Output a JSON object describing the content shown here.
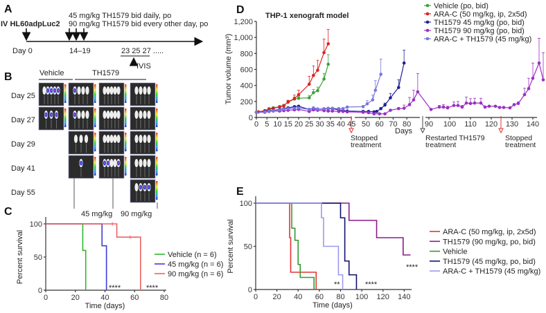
{
  "panel_labels": {
    "a": "A",
    "b": "B",
    "c": "C",
    "d": "D",
    "e": "E"
  },
  "panel_a": {
    "cells": "IV HL60adpLuc2",
    "dose1": "45 mg/kg TH1579  bid daily, po",
    "dose2": "90 mg/kg TH1579  bid every  other day, po",
    "day0": "Day 0",
    "dose_days": "14–19",
    "imaging_days": "23  25  27 .....",
    "imaging_label": "IVIS"
  },
  "panel_b": {
    "group_vehicle": "Vehicle",
    "group_th1579": "TH1579",
    "days": [
      "Day 25",
      "Day 27",
      "Day 29",
      "Day 41",
      "Day 55"
    ],
    "dose_45": "45 mg/kg",
    "dose_90": "90 mg/kg"
  },
  "chart_data": [
    {
      "id": "C",
      "type": "line",
      "subtype": "kaplan-meier",
      "xlabel": "Time (days)",
      "ylabel": "Percent survival",
      "xlim": [
        0,
        80
      ],
      "ylim": [
        0,
        100
      ],
      "xticks": [
        "0",
        "20",
        "40",
        "60",
        "80"
      ],
      "yticks": [
        "0",
        "50",
        "100"
      ],
      "legend_position": "right",
      "series": [
        {
          "name": "Vehicle (n = 6)",
          "color": "#2fb52f",
          "steps": [
            [
              0,
              100
            ],
            [
              25,
              60
            ],
            [
              27,
              0
            ]
          ],
          "censored": []
        },
        {
          "name": "45 mg/kg (n = 6)",
          "color": "#3b3bd9",
          "steps": [
            [
              0,
              100
            ],
            [
              38,
              67
            ],
            [
              41,
              0
            ]
          ],
          "censored": []
        },
        {
          "name": "90 mg/kg (n = 6)",
          "color": "#f06060",
          "steps": [
            [
              0,
              100
            ],
            [
              48,
              80
            ],
            [
              64,
              0
            ]
          ],
          "censored": [
            [
              45,
              100
            ],
            [
              57,
              80
            ]
          ]
        }
      ],
      "annotations": [
        "****",
        "****"
      ]
    },
    {
      "id": "D",
      "type": "line",
      "title": "THP-1 xenograft model",
      "xlabel": "Days",
      "ylabel": "Tumor volume (mm³)",
      "ylim": [
        0,
        1200
      ],
      "yticks": [
        "0",
        "200",
        "400",
        "600",
        "800",
        "1,000",
        "1,200"
      ],
      "xticks": [
        "0",
        "5",
        "10",
        "15",
        "20",
        "25",
        "30",
        "35",
        "40",
        "45",
        "50",
        "60",
        "70",
        "80",
        "90",
        "100",
        "110",
        "120",
        "130",
        "140"
      ],
      "axis_breaks": true,
      "legend_position": "top-right",
      "series": [
        {
          "name": "Vehicle (po, bid)",
          "color": "#3aa33a",
          "points": [
            [
              0,
              65,
              5
            ],
            [
              1,
              70,
              5
            ],
            [
              4,
              85,
              8
            ],
            [
              6,
              110,
              10
            ],
            [
              8,
              120,
              12
            ],
            [
              11,
              135,
              15
            ],
            [
              13,
              150,
              15
            ],
            [
              15,
              190,
              20
            ],
            [
              18,
              230,
              25
            ],
            [
              20,
              240,
              20
            ],
            [
              25,
              245,
              30
            ],
            [
              27,
              310,
              40
            ],
            [
              29,
              335,
              45
            ],
            [
              32,
              480,
              70
            ],
            [
              34,
              665,
              120
            ]
          ]
        },
        {
          "name": "ARA-C (50 mg/kg, ip, 2x5d)",
          "color": "#e02020",
          "points": [
            [
              0,
              65,
              5
            ],
            [
              1,
              70,
              5
            ],
            [
              4,
              85,
              8
            ],
            [
              6,
              100,
              10
            ],
            [
              8,
              115,
              10
            ],
            [
              11,
              130,
              12
            ],
            [
              13,
              145,
              15
            ],
            [
              15,
              195,
              20
            ],
            [
              18,
              235,
              45
            ],
            [
              20,
              285,
              55
            ],
            [
              25,
              415,
              100
            ],
            [
              27,
              525,
              120
            ],
            [
              29,
              590,
              125
            ],
            [
              32,
              810,
              170
            ],
            [
              34,
              920,
              180
            ]
          ]
        },
        {
          "name": "TH1579 45 mg/kg (po, bid)",
          "color": "#1f1f9a",
          "points": [
            [
              0,
              65,
              5
            ],
            [
              4,
              75,
              5
            ],
            [
              6,
              85,
              5
            ],
            [
              8,
              90,
              5
            ],
            [
              11,
              100,
              8
            ],
            [
              13,
              110,
              8
            ],
            [
              15,
              120,
              10
            ],
            [
              18,
              135,
              10
            ],
            [
              20,
              140,
              10
            ],
            [
              25,
              100,
              8
            ],
            [
              27,
              110,
              8
            ],
            [
              29,
              105,
              8
            ],
            [
              32,
              105,
              8
            ],
            [
              34,
              110,
              8
            ],
            [
              36,
              110,
              8
            ],
            [
              39,
              95,
              8
            ],
            [
              41,
              85,
              8
            ],
            [
              43,
              80,
              8
            ],
            [
              48,
              75,
              8
            ],
            [
              52,
              75,
              8
            ],
            [
              56,
              70,
              8
            ],
            [
              58,
              75,
              10
            ],
            [
              61,
              110,
              15
            ],
            [
              64,
              155,
              25
            ],
            [
              68,
              245,
              55
            ],
            [
              74,
              375,
              95
            ],
            [
              78,
              680,
              160
            ]
          ]
        },
        {
          "name": "TH1579 90 mg/kg (po, bid)",
          "color": "#9b2fc4",
          "points": [
            [
              0,
              65,
              5
            ],
            [
              4,
              65,
              5
            ],
            [
              6,
              75,
              5
            ],
            [
              8,
              80,
              5
            ],
            [
              11,
              80,
              5
            ],
            [
              13,
              85,
              5
            ],
            [
              15,
              90,
              5
            ],
            [
              18,
              95,
              5
            ],
            [
              20,
              100,
              5
            ],
            [
              25,
              75,
              5
            ],
            [
              27,
              95,
              5
            ],
            [
              29,
              90,
              5
            ],
            [
              32,
              85,
              5
            ],
            [
              34,
              80,
              5
            ],
            [
              36,
              80,
              5
            ],
            [
              39,
              75,
              5
            ],
            [
              41,
              75,
              5
            ],
            [
              43,
              70,
              5
            ],
            [
              48,
              65,
              5
            ],
            [
              52,
              60,
              5
            ],
            [
              56,
              45,
              5
            ],
            [
              60,
              45,
              5
            ],
            [
              64,
              45,
              5
            ],
            [
              68,
              90,
              10
            ],
            [
              74,
              110,
              15
            ],
            [
              78,
              115,
              40
            ],
            [
              82,
              160,
              90
            ],
            [
              85,
              220,
              120
            ],
            [
              88,
              320,
              230
            ],
            [
              91,
              100,
              10
            ],
            [
              95,
              130,
              20
            ],
            [
              97,
              130,
              30
            ],
            [
              99,
              120,
              20
            ],
            [
              102,
              150,
              45
            ],
            [
              104,
              150,
              50
            ],
            [
              106,
              130,
              20
            ],
            [
              108,
              180,
              75
            ],
            [
              110,
              175,
              60
            ],
            [
              112,
              180,
              60
            ],
            [
              115,
              180,
              60
            ],
            [
              117,
              130,
              10
            ],
            [
              119,
              140,
              10
            ],
            [
              122,
              140,
              10
            ],
            [
              124,
              125,
              10
            ],
            [
              126,
              125,
              10
            ],
            [
              129,
              120,
              10
            ],
            [
              131,
              160,
              10
            ],
            [
              133,
              175,
              20
            ],
            [
              136,
              285,
              80
            ],
            [
              138,
              360,
              130
            ],
            [
              140,
              490,
              190
            ],
            [
              143,
              680,
              310
            ],
            [
              145,
              470,
              340
            ]
          ]
        },
        {
          "name": "ARA-C + TH1579 (45 mg/kg)",
          "color": "#7777dd",
          "points": [
            [
              0,
              65,
              5
            ],
            [
              4,
              70,
              5
            ],
            [
              6,
              80,
              5
            ],
            [
              8,
              85,
              5
            ],
            [
              11,
              95,
              8
            ],
            [
              13,
              105,
              8
            ],
            [
              15,
              110,
              8
            ],
            [
              18,
              115,
              8
            ],
            [
              20,
              120,
              8
            ],
            [
              25,
              100,
              8
            ],
            [
              27,
              120,
              8
            ],
            [
              29,
              105,
              8
            ],
            [
              32,
              110,
              8
            ],
            [
              34,
              115,
              8
            ],
            [
              36,
              115,
              8
            ],
            [
              39,
              110,
              8
            ],
            [
              41,
              110,
              10
            ],
            [
              43,
              130,
              10
            ],
            [
              48,
              135,
              15
            ],
            [
              51,
              170,
              40
            ],
            [
              55,
              220,
              60
            ],
            [
              57,
              340,
              120
            ],
            [
              61,
              540,
              190
            ]
          ]
        }
      ],
      "annotations": [
        {
          "text": "Stopped treatment",
          "color": "#e03030",
          "day": 45
        },
        {
          "text": "Restarted TH1579 treatment",
          "color": "#333333",
          "day": 88
        },
        {
          "text": "Stopped treatment",
          "color": "#e03030",
          "day": 128
        }
      ]
    },
    {
      "id": "E",
      "type": "line",
      "subtype": "kaplan-meier",
      "xlabel": "Time (days)",
      "ylabel": "Percent survival",
      "xlim": [
        0,
        145
      ],
      "ylim": [
        0,
        100
      ],
      "xticks": [
        "0",
        "20",
        "40",
        "60",
        "80",
        "100",
        "120",
        "140"
      ],
      "yticks": [
        "0",
        "50",
        "100"
      ],
      "legend_position": "right",
      "series": [
        {
          "name": "ARA-C (50 mg/kg, ip, 2x5d)",
          "color": "#e83030",
          "steps": [
            [
              0,
              100
            ],
            [
              32,
              60
            ],
            [
              33,
              20
            ],
            [
              57,
              0
            ]
          ]
        },
        {
          "name": "TH1579 (90 mg/kg, po, bid)",
          "color": "#8a1a8a",
          "steps": [
            [
              0,
              100
            ],
            [
              88,
              80
            ],
            [
              114,
              60
            ],
            [
              139,
              40
            ],
            [
              146,
              40
            ]
          ]
        },
        {
          "name": "Vehicle",
          "color": "#2e9a2e",
          "steps": [
            [
              0,
              100
            ],
            [
              34,
              71
            ],
            [
              37,
              57
            ],
            [
              40,
              29
            ],
            [
              42,
              14
            ],
            [
              55,
              0
            ]
          ]
        },
        {
          "name": "TH1579 (45 mg/kg, po, bid)",
          "color": "#101070",
          "steps": [
            [
              0,
              100
            ],
            [
              80,
              83
            ],
            [
              84,
              33
            ],
            [
              88,
              17
            ],
            [
              95,
              0
            ]
          ]
        },
        {
          "name": "ARA-C + TH1579 (45 mg/kg)",
          "color": "#9a9af0",
          "steps": [
            [
              0,
              100
            ],
            [
              62,
              83
            ],
            [
              64,
              50
            ],
            [
              78,
              17
            ],
            [
              82,
              0
            ]
          ]
        }
      ],
      "annotations": [
        "**",
        "****",
        "****"
      ]
    }
  ]
}
